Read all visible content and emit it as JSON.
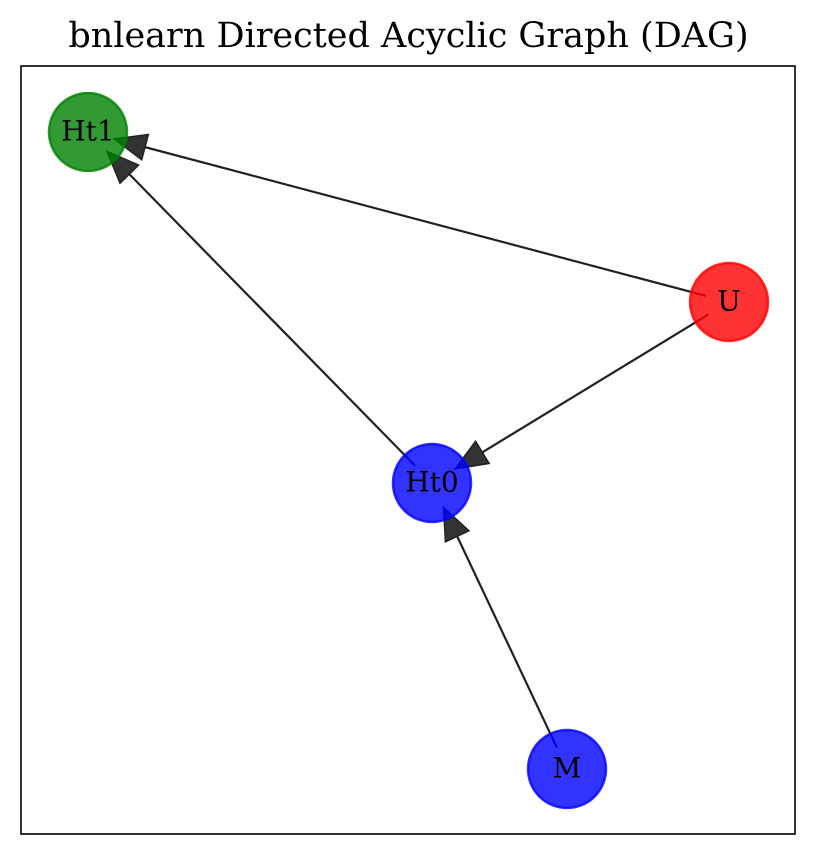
{
  "title": "bnlearn Directed Acyclic Graph (DAG)",
  "colors": {
    "edge": "#222222",
    "frame": "#000000"
  },
  "nodes": [
    {
      "id": "Ht1",
      "label": "Ht1",
      "color": "#008000"
    },
    {
      "id": "U",
      "label": "U",
      "color": "#ff0000"
    },
    {
      "id": "Ht0",
      "label": "Ht0",
      "color": "#0000ff"
    },
    {
      "id": "M",
      "label": "M",
      "color": "#0000ff"
    }
  ],
  "edges": [
    {
      "from": "U",
      "to": "Ht1"
    },
    {
      "from": "Ht0",
      "to": "Ht1"
    },
    {
      "from": "U",
      "to": "Ht0"
    },
    {
      "from": "M",
      "to": "Ht0"
    }
  ]
}
